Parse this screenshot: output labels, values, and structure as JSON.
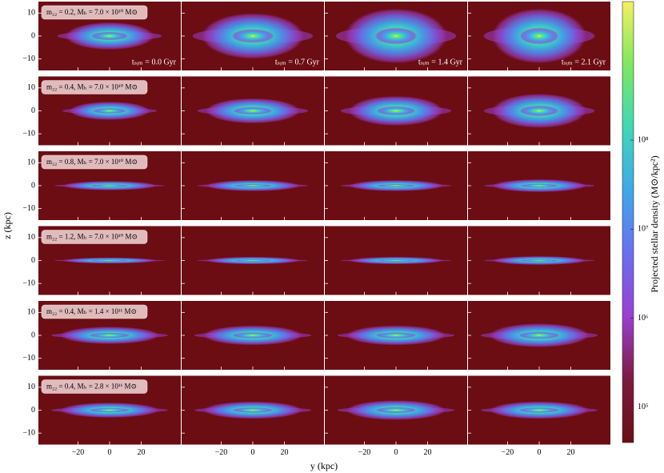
{
  "chart_data": {
    "type": "image-grid",
    "xlabel": "y (kpc)",
    "ylabel": "z (kpc)",
    "xlim": [
      -45,
      45
    ],
    "ylim": [
      -15,
      15
    ],
    "xticks": [
      {
        "value": -20,
        "label": "−20"
      },
      0,
      20
    ],
    "yticks": [
      {
        "value": -10,
        "label": "−10"
      },
      0,
      10
    ],
    "row_labels": [
      "m₂₂ = 0.2, Mₕ = 7.0 × 10¹⁰ M⊙",
      "m₂₂ = 0.4, Mₕ = 7.0 × 10¹⁰ M⊙",
      "m₂₂ = 0.8, Mₕ = 7.0 × 10¹⁰ M⊙",
      "m₂₂ = 1.2, Mₕ = 7.0 × 10¹⁰ M⊙",
      "m₂₂ = 0.4, Mₕ = 1.4 × 10¹¹ M⊙",
      "m₂₂ = 0.4, Mₕ = 2.8 × 10¹¹ M⊙"
    ],
    "time_labels": [
      "tₛᵢₘ = 0.0 Gyr",
      "tₛᵢₘ = 0.7 Gyr",
      "tₛᵢₘ = 1.4 Gyr",
      "tₛᵢₘ = 2.1 Gyr"
    ],
    "colorbar": {
      "label": "Projected stellar density (M⊙/kpc²)",
      "scale": "log",
      "lim": [
        40000,
        3600000000
      ],
      "ticks": [
        {
          "value": 100000,
          "label": "10⁵"
        },
        {
          "value": 1000000,
          "label": "10⁶"
        },
        {
          "value": 10000000,
          "label": "10⁷"
        },
        {
          "value": 100000000,
          "label": "10⁸"
        }
      ],
      "colormap": [
        "#6b0d12",
        "#7c1a40",
        "#9a3fd0",
        "#6a6ff0",
        "#3fa8e8",
        "#3ed8b8",
        "#7ee860",
        "#f4f060"
      ]
    }
  }
}
